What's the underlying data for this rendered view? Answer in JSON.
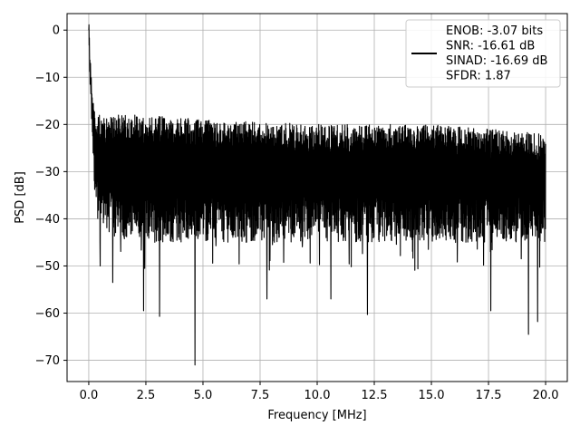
{
  "chart_data": {
    "type": "line",
    "title": "",
    "xlabel": "Frequency [MHz]",
    "ylabel": "PSD [dB]",
    "xlim": [
      -0.95,
      20.95
    ],
    "ylim": [
      -74.5,
      3.5
    ],
    "x_ticks": [
      0,
      2.5,
      5,
      7.5,
      10,
      12.5,
      15,
      17.5,
      20
    ],
    "x_tick_labels": [
      "0.0",
      "2.5",
      "5.0",
      "7.5",
      "10.0",
      "12.5",
      "15.0",
      "17.5",
      "20.0"
    ],
    "y_ticks": [
      0,
      -10,
      -20,
      -30,
      -40,
      -50,
      -60,
      -70
    ],
    "y_tick_labels": [
      "0",
      "−10",
      "−20",
      "−30",
      "−40",
      "−50",
      "−60",
      "−70"
    ],
    "grid": true,
    "legend_position": "top-right",
    "legend_lines": [
      "ENOB: -3.07 bits",
      "SNR: -16.61 dB",
      "SINAD: -16.69 dB",
      "SFDR: 1.87"
    ],
    "series": [
      {
        "color": "#000000",
        "x_range": [
          0,
          20
        ],
        "peak": {
          "x": 0.0,
          "y": 0.0
        },
        "envelope_upper": {
          "x": [
            0,
            0.1,
            0.3,
            1,
            2.5,
            5,
            10,
            15,
            20
          ],
          "y": [
            0,
            -12,
            -18,
            -18,
            -18,
            -19,
            -20,
            -20,
            -22
          ]
        },
        "envelope_lower": {
          "x": [
            0,
            0.3,
            1,
            2.5,
            5,
            10,
            15,
            20
          ],
          "y": [
            -8,
            -38,
            -44,
            -45,
            -45,
            -45,
            -45,
            -45
          ]
        },
        "notable_dips": [
          {
            "x": 0.5,
            "y": -50
          },
          {
            "x": 1.05,
            "y": -53.5
          },
          {
            "x": 2.4,
            "y": -59.5
          },
          {
            "x": 3.1,
            "y": -60.7
          },
          {
            "x": 4.65,
            "y": -71.0
          },
          {
            "x": 7.8,
            "y": -57
          },
          {
            "x": 10.6,
            "y": -57
          },
          {
            "x": 12.2,
            "y": -60.3
          },
          {
            "x": 17.6,
            "y": -59.5
          },
          {
            "x": 19.25,
            "y": -64.5
          },
          {
            "x": 19.65,
            "y": -61.8
          }
        ]
      }
    ]
  }
}
